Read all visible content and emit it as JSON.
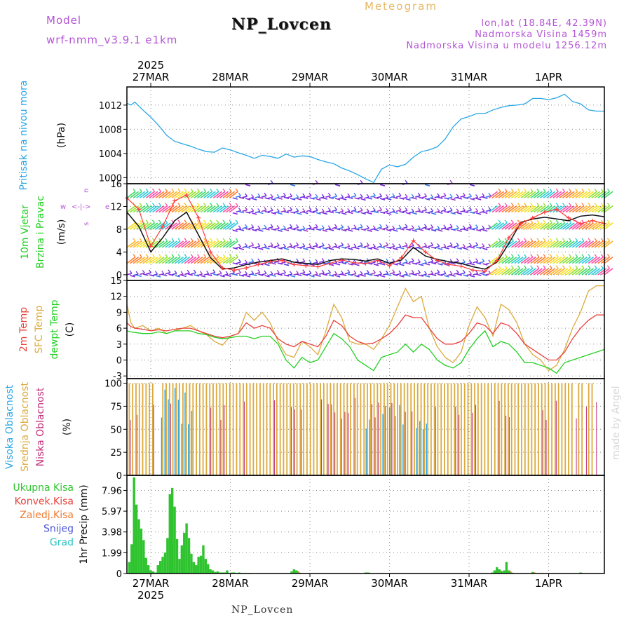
{
  "header": {
    "model_label": "Model",
    "model_name": "wrf-nmm_v3.9.1 e1km",
    "title": "NP_Lovcen",
    "meteogram": "Meteogram",
    "lonlat": "lon,lat (18.84E, 42.39N)",
    "altitude": "Nadmorska Visina 1459m",
    "model_altitude": "Nadmorska Visina u modelu 1256.12m"
  },
  "footer": "NP_Lovcen",
  "credit": "made by Angel",
  "colors": {
    "pressure": "#2aa7e6",
    "temp2m": "#e8413c",
    "sfc_temp": "#dcaa3c",
    "dewpoint": "#24d024",
    "precip": "#2fc42f",
    "title_purple": "#b455d6"
  },
  "chart_data": [
    {
      "id": "pressure",
      "type": "line",
      "ylabel": [
        "Pritisak na nivou mora",
        "(hPa)"
      ],
      "year": "2025",
      "x_ticks": [
        "27MAR",
        "28MAR",
        "29MAR",
        "30MAR",
        "31MAR",
        "1APR"
      ],
      "x_tick_times": [
        0.3,
        1.3,
        2.3,
        3.3,
        4.3,
        5.3
      ],
      "xlim": [
        0,
        6
      ],
      "ylim": [
        999,
        1015
      ],
      "y_ticks": [
        "1000",
        "1004",
        "1008",
        "1012"
      ],
      "series": [
        {
          "name": "",
          "color": "#2aa7e6",
          "x": [
            0,
            0.05,
            0.1,
            0.2,
            0.3,
            0.4,
            0.5,
            0.6,
            0.7,
            0.8,
            0.9,
            1.0,
            1.1,
            1.2,
            1.3,
            1.4,
            1.5,
            1.6,
            1.7,
            1.8,
            1.9,
            2.0,
            2.1,
            2.2,
            2.3,
            2.4,
            2.5,
            2.6,
            2.7,
            2.8,
            2.9,
            3.0,
            3.1,
            3.2,
            3.3,
            3.4,
            3.5,
            3.6,
            3.7,
            3.8,
            3.9,
            4.0,
            4.1,
            4.2,
            4.3,
            4.4,
            4.5,
            4.6,
            4.7,
            4.8,
            4.9,
            5.0,
            5.1,
            5.2,
            5.3,
            5.4,
            5.5,
            5.6,
            5.7,
            5.8,
            5.9,
            6.0
          ],
          "y": [
            1012.3,
            1012,
            1012.5,
            1011.2,
            1010,
            1008.6,
            1007,
            1006,
            1005.6,
            1005.2,
            1004.7,
            1004.3,
            1004.2,
            1004.9,
            1004.6,
            1004.1,
            1003.7,
            1003.2,
            1003.7,
            1003.5,
            1003.2,
            1003.9,
            1003.4,
            1003.6,
            1003.5,
            1003,
            1002.6,
            1002.3,
            1001.6,
            1001.1,
            1000.5,
            999.8,
            999.2,
            1001.4,
            1002.1,
            1001.8,
            1002.2,
            1003.4,
            1004.3,
            1004.6,
            1005.1,
            1006.4,
            1008.4,
            1009.7,
            1010.1,
            1010.6,
            1010.6,
            1011.2,
            1011.6,
            1011.9,
            1012,
            1012.2,
            1013.1,
            1013.1,
            1012.9,
            1013.2,
            1013.8,
            1012.6,
            1012.2,
            1011.2,
            1011,
            1011
          ]
        }
      ]
    },
    {
      "id": "wind",
      "type": "scatter",
      "ylabel": [
        "10m Vjetar",
        "Brzina i Pravac",
        "(m/s)"
      ],
      "legend_glyph": "w <-|-> e, n / s",
      "xlim": [
        0,
        6
      ],
      "ylim": [
        -1,
        16
      ],
      "y_ticks": [
        "0",
        "4",
        "8",
        "12",
        "16"
      ],
      "speed_lines": [
        {
          "name": "",
          "color": "#111111",
          "x": [
            0,
            0.15,
            0.3,
            0.45,
            0.6,
            0.75,
            0.9,
            1.05,
            1.2,
            1.35,
            1.5,
            1.65,
            1.8,
            1.95,
            2.1,
            2.25,
            2.4,
            2.55,
            2.7,
            2.85,
            3.0,
            3.15,
            3.3,
            3.45,
            3.6,
            3.75,
            3.9,
            4.05,
            4.2,
            4.35,
            4.5,
            4.65,
            4.8,
            4.95,
            5.1,
            5.25,
            5.4,
            5.55,
            5.7,
            5.85,
            6.0
          ],
          "y": [
            11,
            8.5,
            4,
            6.5,
            9.5,
            11,
            7,
            3,
            1,
            1.2,
            1.8,
            2.2,
            2.5,
            2.8,
            2.2,
            2,
            1.8,
            2.5,
            2.8,
            2.7,
            2.4,
            2.8,
            2,
            2.6,
            4.8,
            3.3,
            2.7,
            2.3,
            2,
            1.4,
            1,
            2.2,
            5.5,
            9.2,
            9.8,
            10.1,
            9.8,
            9.5,
            10.3,
            10.5,
            10.2
          ]
        },
        {
          "name": "",
          "color": "#ff3a3a",
          "x": [
            0,
            0.15,
            0.3,
            0.45,
            0.6,
            0.75,
            0.9,
            1.05,
            1.2,
            1.35,
            1.5,
            1.65,
            1.8,
            1.95,
            2.1,
            2.25,
            2.4,
            2.55,
            2.7,
            2.85,
            3.0,
            3.15,
            3.3,
            3.45,
            3.6,
            3.75,
            3.9,
            4.05,
            4.2,
            4.35,
            4.5,
            4.65,
            4.8,
            4.95,
            5.1,
            5.25,
            5.4,
            5.55,
            5.7,
            5.85,
            6.0
          ],
          "y": [
            13.5,
            11.5,
            5,
            8.5,
            13,
            14,
            10,
            4,
            1.2,
            0.8,
            1.2,
            1.8,
            2.3,
            2.5,
            1.8,
            1.6,
            1.4,
            2,
            2.6,
            2.1,
            2,
            2.5,
            1.6,
            3,
            6,
            4,
            2.5,
            1.8,
            1.5,
            0.8,
            0.6,
            2.5,
            6.5,
            9,
            10,
            11,
            11.5,
            10,
            9,
            9.5,
            9
          ]
        }
      ],
      "barb_rows": [
        0,
        2,
        4.8,
        8,
        11,
        13.5,
        16
      ]
    },
    {
      "id": "temperature",
      "type": "line",
      "ylabel": [
        "2m Temp",
        "SFC Temp",
        "dewpt Temp",
        "(C)"
      ],
      "xlim": [
        0,
        6
      ],
      "ylim": [
        -3.5,
        15
      ],
      "y_ticks": [
        "-3",
        "0",
        "3",
        "6",
        "9",
        "12",
        "15"
      ],
      "series": [
        {
          "name": "SFC Temp",
          "color": "#dcaa3c",
          "x": [
            0,
            0.05,
            0.1,
            0.2,
            0.3,
            0.4,
            0.5,
            0.6,
            0.7,
            0.8,
            0.9,
            1.0,
            1.1,
            1.2,
            1.3,
            1.4,
            1.5,
            1.6,
            1.7,
            1.8,
            1.9,
            2.0,
            2.1,
            2.2,
            2.3,
            2.4,
            2.5,
            2.6,
            2.7,
            2.8,
            2.9,
            3.0,
            3.1,
            3.2,
            3.3,
            3.4,
            3.5,
            3.6,
            3.7,
            3.8,
            3.9,
            4.0,
            4.1,
            4.2,
            4.3,
            4.4,
            4.5,
            4.6,
            4.7,
            4.8,
            4.9,
            5.0,
            5.1,
            5.2,
            5.3,
            5.4,
            5.5,
            5.6,
            5.7,
            5.8,
            5.9,
            6.0
          ],
          "y": [
            10.5,
            7,
            6,
            6.5,
            5.5,
            6,
            5,
            5.5,
            6,
            6.5,
            5.5,
            4.8,
            3.5,
            2.8,
            4.5,
            5,
            9,
            7.5,
            9,
            7,
            3.5,
            1,
            0.5,
            3.5,
            2.5,
            1,
            5.5,
            10.5,
            8,
            3.5,
            3,
            3,
            2,
            4,
            6.5,
            10,
            13.5,
            11,
            12,
            6,
            2.5,
            0.5,
            -0.5,
            1.5,
            6.5,
            10,
            8,
            4.5,
            10.5,
            9.5,
            7,
            3,
            1,
            0,
            -2,
            -1,
            2,
            6,
            9,
            13,
            14,
            14
          ]
        },
        {
          "name": "2m Temp",
          "color": "#e8413c",
          "x": [
            0,
            0.05,
            0.1,
            0.2,
            0.3,
            0.4,
            0.5,
            0.6,
            0.7,
            0.8,
            0.9,
            1.0,
            1.1,
            1.2,
            1.3,
            1.4,
            1.5,
            1.6,
            1.7,
            1.8,
            1.9,
            2.0,
            2.1,
            2.2,
            2.3,
            2.4,
            2.5,
            2.6,
            2.7,
            2.8,
            2.9,
            3.0,
            3.1,
            3.2,
            3.3,
            3.4,
            3.5,
            3.6,
            3.7,
            3.8,
            3.9,
            4.0,
            4.1,
            4.2,
            4.3,
            4.4,
            4.5,
            4.6,
            4.7,
            4.8,
            4.9,
            5.0,
            5.1,
            5.2,
            5.3,
            5.4,
            5.5,
            5.6,
            5.7,
            5.8,
            5.9,
            6.0
          ],
          "y": [
            7,
            6.3,
            6,
            5.8,
            5.5,
            5.7,
            5.5,
            5.8,
            6,
            6,
            5.5,
            5,
            4.5,
            4.2,
            4.5,
            5,
            7,
            6,
            6.5,
            6,
            4,
            3,
            2.5,
            3.5,
            3,
            2.5,
            4.5,
            7.5,
            6.5,
            4.5,
            3.5,
            3,
            3.2,
            4,
            5,
            6.5,
            8.5,
            8,
            8,
            6,
            4,
            3,
            3,
            3.5,
            5,
            7,
            6.5,
            5,
            7,
            6.5,
            5,
            3,
            2,
            1,
            0,
            0,
            1.5,
            4,
            6,
            7.5,
            8.5,
            8.5
          ]
        },
        {
          "name": "dewpt Temp",
          "color": "#24d024",
          "x": [
            0,
            0.05,
            0.1,
            0.2,
            0.3,
            0.4,
            0.5,
            0.6,
            0.7,
            0.8,
            0.9,
            1.0,
            1.1,
            1.2,
            1.3,
            1.4,
            1.5,
            1.6,
            1.7,
            1.8,
            1.9,
            2.0,
            2.1,
            2.2,
            2.3,
            2.4,
            2.5,
            2.6,
            2.7,
            2.8,
            2.9,
            3.0,
            3.1,
            3.2,
            3.3,
            3.4,
            3.5,
            3.6,
            3.7,
            3.8,
            3.9,
            4.0,
            4.1,
            4.2,
            4.3,
            4.4,
            4.5,
            4.6,
            4.7,
            4.8,
            4.9,
            5.0,
            5.1,
            5.2,
            5.3,
            5.4,
            5.5,
            5.6,
            5.7,
            5.8,
            5.9,
            6.0
          ],
          "y": [
            5.5,
            5.3,
            5.2,
            5,
            5,
            5.3,
            5,
            5.5,
            5.5,
            5.5,
            5,
            4.8,
            4.3,
            4,
            4.2,
            4.5,
            4.5,
            4,
            4.5,
            4.5,
            3,
            0,
            -1.5,
            0.5,
            -0.5,
            0,
            2.5,
            5,
            4,
            2.5,
            0,
            -1,
            -2,
            0.5,
            1,
            1.5,
            3,
            1.5,
            3,
            2,
            0,
            -1,
            -1.5,
            -0.5,
            2,
            4,
            5.5,
            2.5,
            3.5,
            3,
            1.5,
            -0.5,
            -0.5,
            -1,
            -1.5,
            -2.5,
            -0.5,
            0,
            0.5,
            1,
            1.5,
            2
          ]
        }
      ]
    },
    {
      "id": "clouds",
      "type": "bar",
      "ylabel": [
        "Visoka Oblacnost",
        "Srednja Oblacnost",
        "Niska Oblacnost",
        "(%)"
      ],
      "xlim": [
        0,
        6
      ],
      "ylim": [
        0,
        105
      ],
      "y_ticks": [
        "0",
        "25",
        "50",
        "75",
        "100"
      ],
      "series": [
        {
          "name": "Srednja Oblacnost",
          "color": "#dcaa3c",
          "value_pattern": "mostly 100% throughout the period"
        },
        {
          "name": "Niska Oblacnost",
          "color": "#c0307a",
          "value_pattern": "intermittent 100%"
        },
        {
          "name": "Visoka Oblacnost",
          "color": "#2aa7e6",
          "value_pattern": "intermittent, clusters near 27MAR and 30MAR"
        }
      ]
    },
    {
      "id": "precip",
      "type": "bar",
      "ylabel": [
        "1hr Precip (mm)"
      ],
      "legend": [
        {
          "label": "Ukupna Kisa",
          "color": "#2fc42f"
        },
        {
          "label": "Konvek.Kisa",
          "color": "#e8413c"
        },
        {
          "label": "Zaledj.Kisa",
          "color": "#f07a30"
        },
        {
          "label": "Snijeg",
          "color": "#4b55d8"
        },
        {
          "label": "Grad",
          "color": "#2ec4c4"
        }
      ],
      "x_ticks": [
        "27MAR",
        "28MAR",
        "29MAR",
        "30MAR",
        "31MAR",
        "1APR"
      ],
      "year": "2025",
      "xlim": [
        0,
        6
      ],
      "ylim": [
        0,
        9.4
      ],
      "y_ticks": [
        "0",
        "1.99",
        "3.98",
        "5.97",
        "7.96"
      ],
      "total_precip": {
        "x": [
          0.03,
          0.06,
          0.09,
          0.12,
          0.15,
          0.18,
          0.21,
          0.24,
          0.27,
          0.3,
          0.33,
          0.36,
          0.39,
          0.42,
          0.45,
          0.48,
          0.51,
          0.54,
          0.57,
          0.6,
          0.63,
          0.66,
          0.69,
          0.72,
          0.75,
          0.78,
          0.81,
          0.84,
          0.87,
          0.9,
          0.93,
          0.96,
          0.99,
          1.02,
          1.05,
          1.08,
          1.11,
          1.14,
          1.17,
          1.2,
          1.23,
          1.26,
          1.29,
          1.32,
          1.35,
          1.38,
          1.41,
          1.44,
          1.47,
          1.5,
          1.53,
          1.56,
          2.07,
          2.1,
          2.13,
          2.16,
          3.0,
          3.03,
          4.59,
          4.62,
          4.65,
          4.68,
          4.71,
          4.74,
          4.77,
          4.8,
          4.83,
          5.1,
          5.7
        ],
        "y": [
          1.1,
          2.8,
          9.2,
          6.6,
          5.2,
          4.3,
          3.2,
          1.5,
          0.8,
          0.3,
          0.2,
          0.1,
          0.8,
          1.2,
          1.6,
          2.0,
          3.4,
          7.6,
          8.2,
          6.4,
          3.3,
          1.4,
          2.7,
          3.9,
          4.8,
          3.4,
          1.9,
          1.1,
          0.8,
          1.6,
          1.7,
          2.7,
          1.4,
          0.9,
          0.4,
          0.3,
          0.15,
          0.2,
          0.1,
          0.1,
          0.1,
          0.3,
          0.05,
          0.1,
          0.1,
          0.05,
          0.1,
          0.05,
          0.05,
          0.05,
          0.05,
          0.05,
          0.2,
          0.4,
          0.3,
          0.1,
          0.1,
          0.1,
          0.1,
          0.3,
          0.6,
          0.4,
          0.2,
          0.3,
          1.1,
          0.3,
          0.1,
          0.15,
          0.1
        ]
      }
    }
  ]
}
